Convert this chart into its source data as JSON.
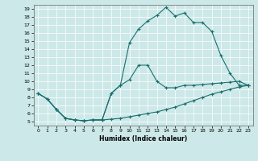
{
  "xlabel": "Humidex (Indice chaleur)",
  "xlim": [
    -0.5,
    23.5
  ],
  "ylim": [
    4.5,
    19.5
  ],
  "yticks": [
    5,
    6,
    7,
    8,
    9,
    10,
    11,
    12,
    13,
    14,
    15,
    16,
    17,
    18,
    19
  ],
  "xticks": [
    0,
    1,
    2,
    3,
    4,
    5,
    6,
    7,
    8,
    9,
    10,
    11,
    12,
    13,
    14,
    15,
    16,
    17,
    18,
    19,
    20,
    21,
    22,
    23
  ],
  "bg_color": "#cde8e8",
  "line_color": "#1a6e6e",
  "line1_y": [
    8.5,
    7.8,
    6.5,
    5.4,
    5.2,
    5.1,
    5.2,
    5.2,
    8.5,
    9.5,
    14.8,
    16.5,
    17.5,
    18.2,
    19.2,
    18.1,
    18.5,
    17.3,
    17.3,
    16.2,
    13.2,
    11.0,
    9.5,
    9.5
  ],
  "line2_y": [
    8.5,
    7.8,
    6.5,
    5.4,
    5.2,
    5.1,
    5.2,
    5.2,
    8.5,
    9.5,
    10.2,
    12.0,
    12.0,
    10.0,
    9.2,
    9.2,
    9.5,
    9.5,
    9.6,
    9.7,
    9.8,
    9.9,
    10.0,
    9.5
  ],
  "line3_y": [
    8.5,
    7.8,
    6.5,
    5.4,
    5.2,
    5.1,
    5.2,
    5.2,
    5.3,
    5.4,
    5.6,
    5.8,
    6.0,
    6.2,
    6.5,
    6.8,
    7.2,
    7.6,
    8.0,
    8.4,
    8.7,
    9.0,
    9.3,
    9.5
  ]
}
